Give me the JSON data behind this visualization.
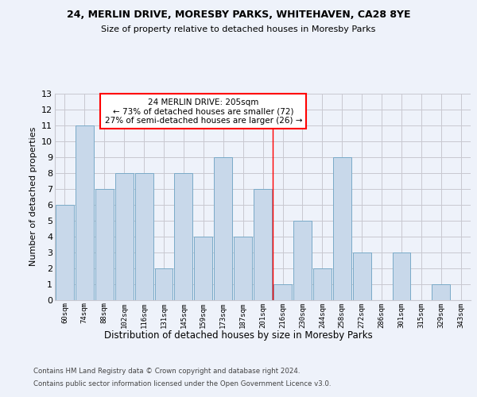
{
  "title1": "24, MERLIN DRIVE, MORESBY PARKS, WHITEHAVEN, CA28 8YE",
  "title2": "Size of property relative to detached houses in Moresby Parks",
  "xlabel": "Distribution of detached houses by size in Moresby Parks",
  "ylabel": "Number of detached properties",
  "footer1": "Contains HM Land Registry data © Crown copyright and database right 2024.",
  "footer2": "Contains public sector information licensed under the Open Government Licence v3.0.",
  "categories": [
    "60sqm",
    "74sqm",
    "88sqm",
    "102sqm",
    "116sqm",
    "131sqm",
    "145sqm",
    "159sqm",
    "173sqm",
    "187sqm",
    "201sqm",
    "216sqm",
    "230sqm",
    "244sqm",
    "258sqm",
    "272sqm",
    "286sqm",
    "301sqm",
    "315sqm",
    "329sqm",
    "343sqm"
  ],
  "values": [
    6,
    11,
    7,
    8,
    8,
    2,
    8,
    4,
    9,
    4,
    7,
    1,
    5,
    2,
    9,
    3,
    0,
    3,
    0,
    1,
    0
  ],
  "bar_color": "#c8d8ea",
  "bar_edge_color": "#7aaac8",
  "grid_color": "#c8c8d0",
  "background_color": "#eef2fa",
  "red_line_x": 10.5,
  "annotation_text": "24 MERLIN DRIVE: 205sqm\n← 73% of detached houses are smaller (72)\n27% of semi-detached houses are larger (26) →",
  "annotation_box_color": "white",
  "annotation_border_color": "red",
  "ylim": [
    0,
    13
  ],
  "yticks": [
    0,
    1,
    2,
    3,
    4,
    5,
    6,
    7,
    8,
    9,
    10,
    11,
    12,
    13
  ]
}
